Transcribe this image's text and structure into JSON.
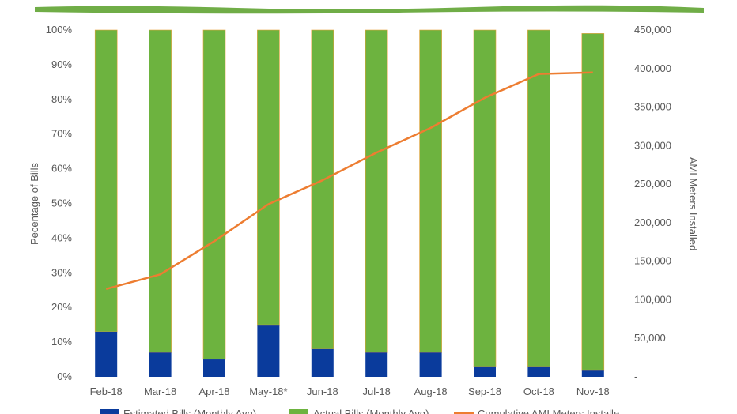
{
  "colors": {
    "top_band": "#70ad47",
    "estimated": "#0a3b9c",
    "actual": "#6db33f",
    "line": "#ed7d31",
    "bar_edge": "#e8a23a",
    "grid": "#d9d9d9",
    "text": "#595959"
  },
  "chart_data": {
    "type": "bar",
    "stacked": true,
    "categories": [
      "Feb-18",
      "Mar-18",
      "Apr-18",
      "May-18*",
      "Jun-18",
      "Jul-18",
      "Aug-18",
      "Sep-18",
      "Oct-18",
      "Nov-18"
    ],
    "series": [
      {
        "name": "Estimated Bills (Monthly Avg)",
        "type": "bar",
        "axis": "left",
        "values": [
          13,
          7,
          5,
          15,
          8,
          7,
          7,
          3,
          3,
          2
        ]
      },
      {
        "name": "Actual Bills (Monthly Avg)",
        "type": "bar",
        "axis": "left",
        "values": [
          87,
          93,
          95,
          85,
          92,
          93,
          93,
          97,
          97,
          97
        ]
      },
      {
        "name": "Cumulative AMI Meters Installe",
        "type": "line",
        "axis": "right",
        "values": [
          114000,
          133000,
          176000,
          224000,
          255000,
          291000,
          323000,
          362000,
          393000,
          395000
        ]
      }
    ],
    "ylabel": "Pecentage of Bills",
    "y2label": "AMI Meters Installed",
    "ylim": [
      0,
      100
    ],
    "y2lim": [
      0,
      450000
    ],
    "y_ticks": [
      "0%",
      "10%",
      "20%",
      "30%",
      "40%",
      "50%",
      "60%",
      "70%",
      "80%",
      "90%",
      "100%"
    ],
    "y2_ticks": [
      "-",
      "50,000",
      "100,000",
      "150,000",
      "200,000",
      "250,000",
      "300,000",
      "350,000",
      "400,000",
      "450,000"
    ],
    "legend_position": "bottom",
    "grid": false
  }
}
